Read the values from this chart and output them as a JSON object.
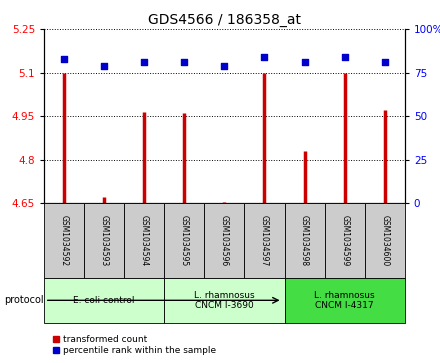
{
  "title": "GDS4566 / 186358_at",
  "samples": [
    "GSM1034592",
    "GSM1034593",
    "GSM1034594",
    "GSM1034595",
    "GSM1034596",
    "GSM1034597",
    "GSM1034598",
    "GSM1034599",
    "GSM1034600"
  ],
  "transformed_count": [
    5.1,
    4.67,
    4.965,
    4.96,
    4.655,
    5.1,
    4.83,
    5.1,
    4.97
  ],
  "percentile_rank": [
    83,
    79,
    81,
    81,
    79,
    84,
    81,
    84,
    81
  ],
  "ylim_left": [
    4.65,
    5.25
  ],
  "ylim_right": [
    0,
    100
  ],
  "yticks_left": [
    4.65,
    4.8,
    4.95,
    5.1,
    5.25
  ],
  "yticks_right": [
    0,
    25,
    50,
    75,
    100
  ],
  "groups": [
    {
      "label": "E. coli control",
      "indices": [
        0,
        1,
        2
      ],
      "color": "#ccffcc"
    },
    {
      "label": "L. rhamnosus\nCNCM I-3690",
      "indices": [
        3,
        4,
        5
      ],
      "color": "#ccffcc"
    },
    {
      "label": "L. rhamnosus\nCNCM I-4317",
      "indices": [
        6,
        7,
        8
      ],
      "color": "#44dd44"
    }
  ],
  "bar_color": "#cc0000",
  "dot_color": "#0000cc",
  "protocol_label": "protocol",
  "legend_bar": "transformed count",
  "legend_dot": "percentile rank within the sample",
  "sample_box_color": "#cccccc",
  "title_fontsize": 10,
  "tick_fontsize": 7.5,
  "label_fontsize": 7
}
